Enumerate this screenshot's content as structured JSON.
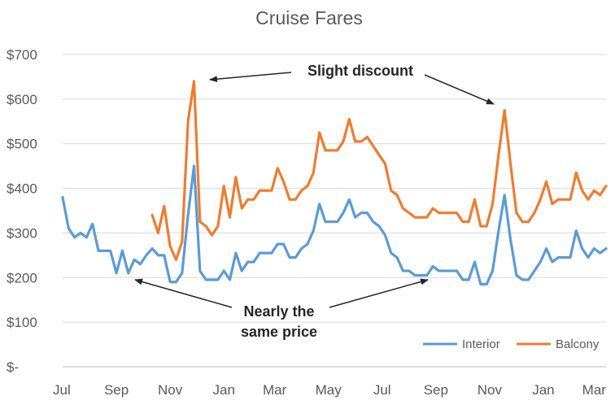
{
  "chart_data": {
    "type": "line",
    "title": "Cruise Fares",
    "xlabel": "",
    "ylabel": "",
    "ylim": [
      0,
      700
    ],
    "y_ticks": [
      {
        "value": 0,
        "label": "$-"
      },
      {
        "value": 100,
        "label": "$100"
      },
      {
        "value": 200,
        "label": "$200"
      },
      {
        "value": 300,
        "label": "$300"
      },
      {
        "value": 400,
        "label": "$400"
      },
      {
        "value": 500,
        "label": "$500"
      },
      {
        "value": 600,
        "label": "$600"
      },
      {
        "value": 700,
        "label": "$700"
      }
    ],
    "x_ticks": [
      {
        "label": "Jul",
        "index": 0
      },
      {
        "label": "Sep",
        "index": 9
      },
      {
        "label": "Nov",
        "index": 18
      },
      {
        "label": "Jan",
        "index": 27
      },
      {
        "label": "Mar",
        "index": 35.5
      },
      {
        "label": "May",
        "index": 44.5
      },
      {
        "label": "Jul",
        "index": 53.5
      },
      {
        "label": "Sep",
        "index": 62.5
      },
      {
        "label": "Nov",
        "index": 71.5
      },
      {
        "label": "Jan",
        "index": 80.5
      },
      {
        "label": "Mar",
        "index": 89
      }
    ],
    "grid": "horizontal",
    "legend_position": "bottom-right",
    "series": [
      {
        "name": "Interior",
        "color": "#5B9BD5",
        "values": [
          380,
          310,
          290,
          300,
          290,
          320,
          260,
          260,
          260,
          210,
          260,
          210,
          240,
          230,
          250,
          265,
          250,
          250,
          190,
          190,
          210,
          340,
          450,
          215,
          195,
          195,
          195,
          215,
          195,
          255,
          215,
          235,
          235,
          255,
          255,
          255,
          275,
          275,
          245,
          245,
          265,
          275,
          305,
          365,
          325,
          325,
          325,
          345,
          375,
          335,
          345,
          345,
          325,
          315,
          295,
          255,
          245,
          215,
          215,
          205,
          205,
          205,
          225,
          215,
          215,
          215,
          215,
          195,
          195,
          235,
          185,
          185,
          215,
          305,
          385,
          285,
          205,
          195,
          195,
          215,
          235,
          265,
          235,
          245,
          245,
          245,
          305,
          265,
          245,
          265,
          255,
          265
        ]
      },
      {
        "name": "Balcony",
        "color": "#ED7D31",
        "values": [
          null,
          null,
          null,
          null,
          null,
          null,
          null,
          null,
          null,
          null,
          null,
          null,
          null,
          null,
          null,
          340,
          300,
          360,
          270,
          240,
          280,
          550,
          640,
          325,
          315,
          295,
          315,
          405,
          335,
          425,
          355,
          375,
          375,
          395,
          395,
          395,
          445,
          415,
          375,
          375,
          395,
          405,
          435,
          525,
          485,
          485,
          485,
          505,
          555,
          505,
          505,
          515,
          495,
          475,
          455,
          395,
          385,
          355,
          345,
          335,
          335,
          335,
          355,
          345,
          345,
          345,
          345,
          325,
          325,
          375,
          315,
          315,
          365,
          475,
          575,
          455,
          345,
          325,
          325,
          345,
          375,
          415,
          365,
          375,
          375,
          375,
          435,
          395,
          375,
          395,
          385,
          405
        ]
      }
    ],
    "annotations": [
      {
        "text": "Slight discount"
      },
      {
        "text": "Nearly the"
      },
      {
        "text": "same price"
      }
    ]
  }
}
